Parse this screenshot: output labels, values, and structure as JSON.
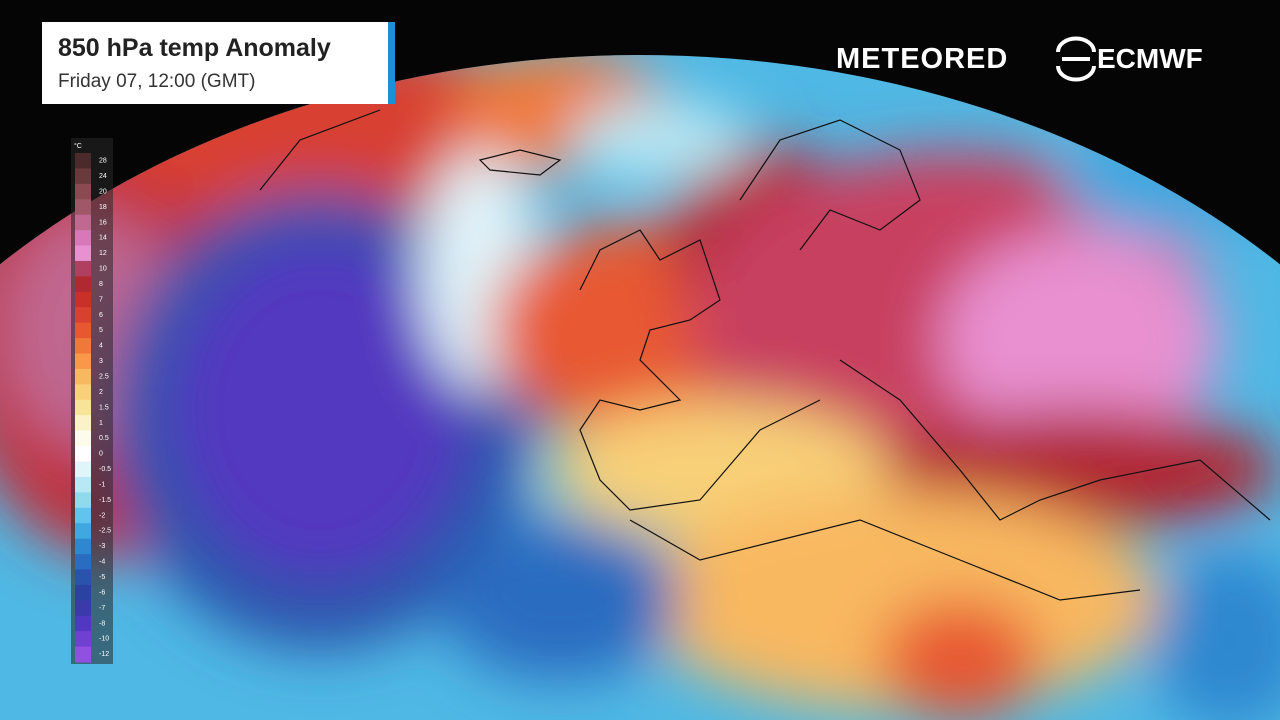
{
  "header": {
    "title": "850 hPa temp Anomaly",
    "subtitle": "Friday 07, 12:00 (GMT)"
  },
  "logos": {
    "meteored": "METEORED",
    "ecmwf": "ECMWF"
  },
  "legend": {
    "unit": "°C",
    "values": [
      28,
      24,
      20,
      18,
      16,
      14,
      12,
      10,
      8,
      7,
      6,
      5,
      4,
      3,
      2.5,
      2,
      1.5,
      1,
      0.5,
      0,
      -0.5,
      -1,
      -1.5,
      -2,
      -2.5,
      -3,
      -4,
      -5,
      -6,
      -7,
      -8,
      -10,
      -12
    ],
    "colors": [
      "#4a2a2a",
      "#6a3a3a",
      "#8a4a50",
      "#a05868",
      "#c06890",
      "#d878b8",
      "#e890d0",
      "#b04060",
      "#b02830",
      "#c83028",
      "#d84030",
      "#e85830",
      "#f07838",
      "#f89848",
      "#f8b860",
      "#f8d078",
      "#f8e498",
      "#fbf2c8",
      "#fdfbeb",
      "#ffffff",
      "#e0f4fa",
      "#b8e8f4",
      "#90daf0",
      "#60c4ec",
      "#40a8e0",
      "#2e88d0",
      "#2a6cc0",
      "#2a54ac",
      "#2c42a0",
      "#3a3aa8",
      "#5238c0",
      "#7040d0",
      "#9050e0"
    ]
  }
}
